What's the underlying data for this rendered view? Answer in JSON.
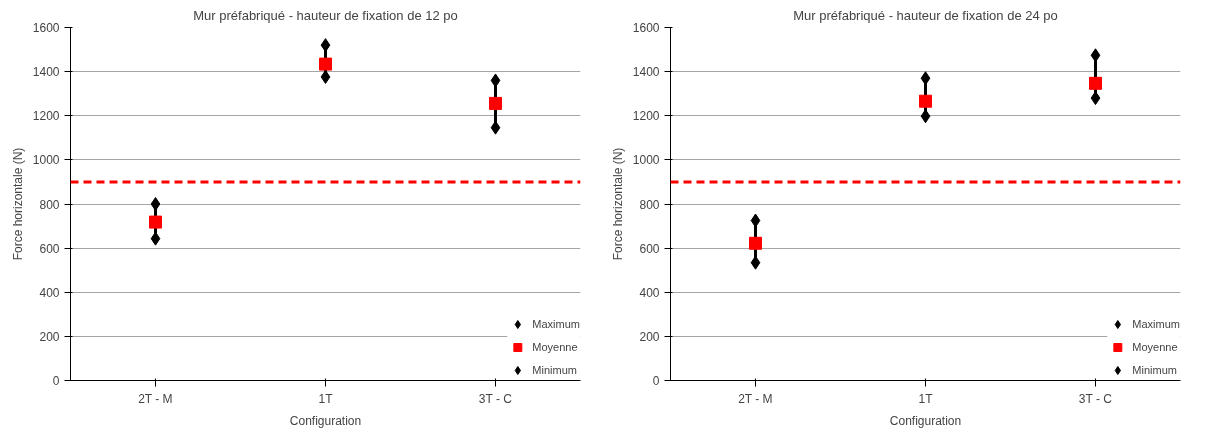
{
  "chart_data": [
    {
      "type": "scatter",
      "title": "Mur préfabriqué - hauteur de fixation de 12 po",
      "xlabel": "Configuration",
      "ylabel": "Force horizontale (N)",
      "categories": [
        "2T - M",
        "1T",
        "3T - C"
      ],
      "ylim": [
        0,
        1600
      ],
      "yticks": [
        0,
        200,
        400,
        600,
        800,
        1000,
        1200,
        1400,
        1600
      ],
      "grid": "y",
      "legend": "bottom right",
      "series": [
        {
          "name": "Maximum",
          "color": "#000000",
          "marker": "diamond",
          "values": [
            800,
            1520,
            1360
          ]
        },
        {
          "name": "Moyenne",
          "color": "#ff0000",
          "marker": "square",
          "values": [
            718,
            1434,
            1256
          ]
        },
        {
          "name": "Minimum",
          "color": "#000000",
          "marker": "diamond",
          "values": [
            643,
            1376,
            1146
          ]
        }
      ],
      "ref_lines": [
        {
          "axis": "y",
          "value": 900,
          "color": "#ff0000",
          "line_style": "dashed"
        }
      ]
    },
    {
      "type": "scatter",
      "title": "Mur préfabriqué - hauteur de fixation de 24 po",
      "xlabel": "Configuration",
      "ylabel": "Force horizontale (N)",
      "categories": [
        "2T - M",
        "1T",
        "3T - C"
      ],
      "ylim": [
        0,
        1600
      ],
      "yticks": [
        0,
        200,
        400,
        600,
        800,
        1000,
        1200,
        1400,
        1600
      ],
      "grid": "y",
      "legend": "bottom right",
      "series": [
        {
          "name": "Maximum",
          "color": "#000000",
          "marker": "diamond",
          "values": [
            725,
            1370,
            1474
          ]
        },
        {
          "name": "Moyenne",
          "color": "#ff0000",
          "marker": "square",
          "values": [
            622,
            1266,
            1347
          ]
        },
        {
          "name": "Minimum",
          "color": "#000000",
          "marker": "diamond",
          "values": [
            534,
            1198,
            1280
          ]
        }
      ],
      "ref_lines": [
        {
          "axis": "y",
          "value": 900,
          "color": "#ff0000",
          "line_style": "dashed"
        }
      ]
    }
  ]
}
